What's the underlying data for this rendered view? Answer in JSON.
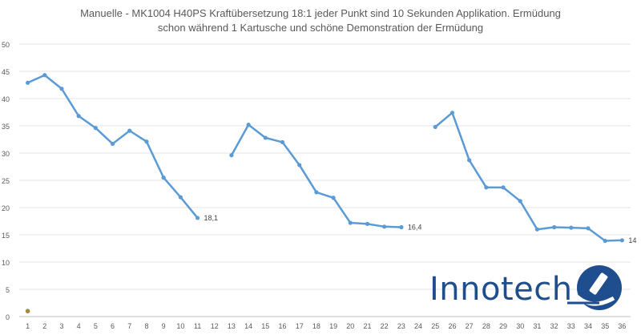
{
  "chart_data": {
    "type": "line",
    "title_lines": [
      "Manuelle - MK1004 H40PS Kraftübersetzung 18:1 jeder Punkt sind 10 Sekunden Applikation. Ermüdung",
      "schon während 1 Kartusche und schöne Demonstration der Ermüdung"
    ],
    "categories": [
      "1",
      "2",
      "3",
      "4",
      "5",
      "6",
      "7",
      "8",
      "9",
      "10",
      "11",
      "12",
      "13",
      "14",
      "15",
      "16",
      "17",
      "18",
      "19",
      "20",
      "21",
      "22",
      "23",
      "24",
      "25",
      "26",
      "27",
      "28",
      "29",
      "30",
      "31",
      "32",
      "33",
      "34",
      "35",
      "36"
    ],
    "series": [
      {
        "values": [
          42.9,
          44.3,
          41.8,
          36.8,
          34.6,
          31.7,
          34.1,
          32.1,
          25.5,
          21.9,
          18.1,
          null,
          29.6,
          35.2,
          32.8,
          32.0,
          27.8,
          22.8,
          21.8,
          17.2,
          17.0,
          16.5,
          16.4,
          null,
          34.8,
          37.4,
          28.7,
          23.7,
          23.7,
          21.2,
          16.0,
          16.4,
          16.3,
          16.2,
          13.9,
          14.0
        ],
        "color": "#5b9bd5"
      }
    ],
    "extra_point": {
      "category": "1",
      "value": 1.0,
      "color": "#a08a3c"
    },
    "data_labels": [
      {
        "category": "11",
        "text": "18,1"
      },
      {
        "category": "23",
        "text": "16,4"
      },
      {
        "category": "36",
        "text": "14"
      }
    ],
    "y_ticks": [
      "0",
      "5",
      "10",
      "15",
      "20",
      "25",
      "30",
      "35",
      "40",
      "45",
      "50"
    ],
    "ylim": [
      0,
      50
    ],
    "grid": true,
    "legend": "none"
  },
  "logo": {
    "text": "Innotech",
    "color": "#1f4e8f"
  }
}
